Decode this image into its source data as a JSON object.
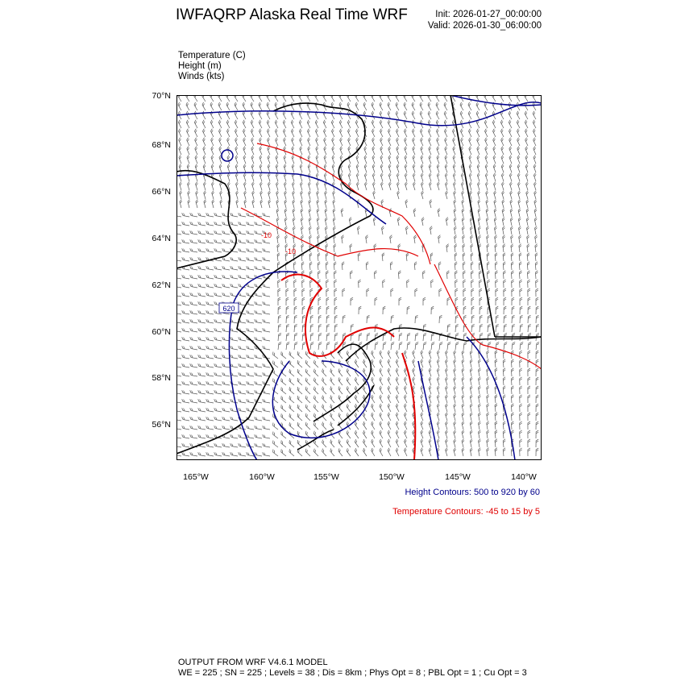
{
  "header": {
    "title": "IWFAQRP Alaska Real Time WRF",
    "init": "Init: 2026-01-27_00:00:00",
    "valid": "Valid: 2026-01-30_06:00:00"
  },
  "fields": [
    "Temperature   (C)",
    "Height   (m)",
    "Winds   (kts)"
  ],
  "map": {
    "lat_labels": [
      "70°N",
      "68°N",
      "66°N",
      "64°N",
      "62°N",
      "60°N",
      "58°N",
      "56°N"
    ],
    "lon_labels": [
      "165°W",
      "160°W",
      "155°W",
      "150°W",
      "145°W",
      "140°W"
    ],
    "contour_labels": {
      "height": "620",
      "temp": [
        "-10",
        "-10"
      ]
    },
    "colors": {
      "height": "#00008b",
      "temperature": "#e00000",
      "coast": "#000000",
      "barbs": "#555555"
    }
  },
  "legend": {
    "height": "Height Contours: 500 to 920 by 60",
    "temperature": "Temperature Contours: -45 to 15 by 5"
  },
  "footer": {
    "line1": "OUTPUT FROM WRF V4.6.1 MODEL",
    "line2": "WE = 225 ; SN = 225 ; Levels = 38 ; Dis = 8km ; Phys Opt = 8 ; PBL Opt = 1 ; Cu Opt = 3"
  }
}
